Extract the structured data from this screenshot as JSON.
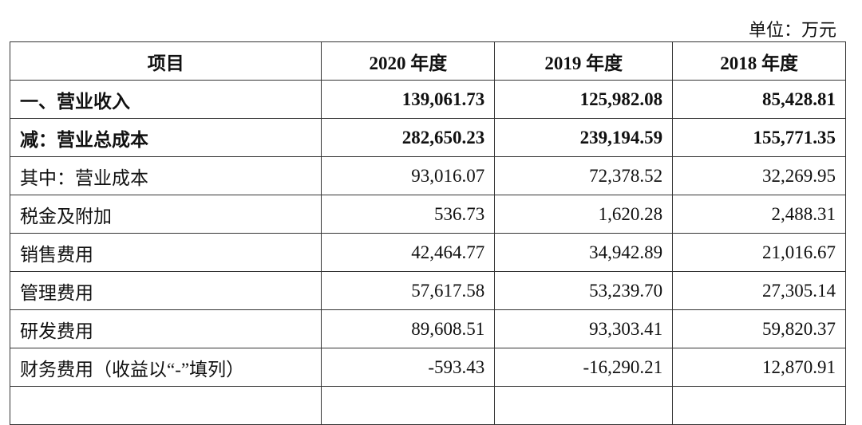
{
  "unit": "单位：万元",
  "headers": [
    "项目",
    "2020 年度",
    "2019 年度",
    "2018 年度"
  ],
  "rows": [
    {
      "label": "一、营业收入",
      "bold": true,
      "values": [
        "139,061.73",
        "125,982.08",
        "85,428.81"
      ]
    },
    {
      "label": "减：营业总成本",
      "bold": true,
      "values": [
        "282,650.23",
        "239,194.59",
        "155,771.35"
      ]
    },
    {
      "label": "其中：营业成本",
      "bold": false,
      "values": [
        "93,016.07",
        "72,378.52",
        "32,269.95"
      ]
    },
    {
      "label": "税金及附加",
      "bold": false,
      "values": [
        "536.73",
        "1,620.28",
        "2,488.31"
      ]
    },
    {
      "label": "销售费用",
      "bold": false,
      "values": [
        "42,464.77",
        "34,942.89",
        "21,016.67"
      ]
    },
    {
      "label": "管理费用",
      "bold": false,
      "values": [
        "57,617.58",
        "53,239.70",
        "27,305.14"
      ]
    },
    {
      "label": "研发费用",
      "bold": false,
      "values": [
        "89,608.51",
        "93,303.41",
        "59,820.37"
      ]
    },
    {
      "label": "财务费用（收益以“-”填列）",
      "bold": false,
      "values": [
        "-593.43",
        "-16,290.21",
        "12,870.91"
      ]
    }
  ]
}
